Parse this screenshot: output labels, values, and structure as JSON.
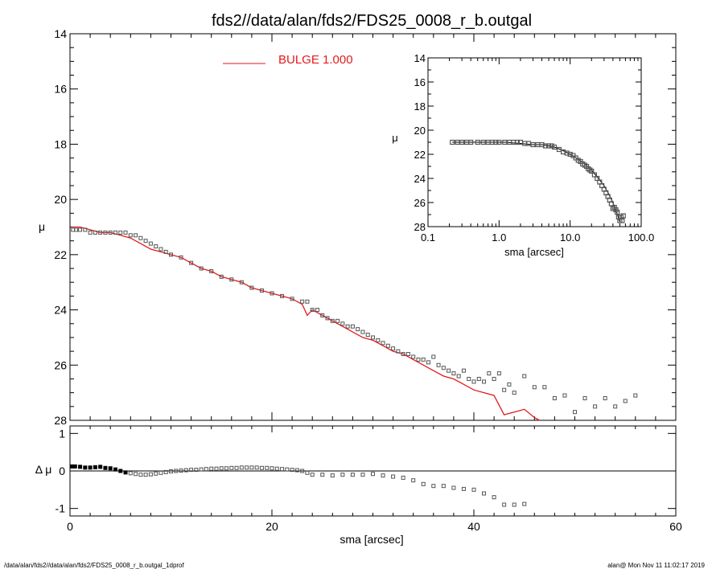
{
  "header": {
    "title": "fds2//data/alan/fds2/FDS25_0008_r_b.outgal"
  },
  "footer": {
    "left": "/data/alan/fds2//data/alan/fds2/FDS25_0008_r_b.outgal_1dprof",
    "right": "alan@  Mon Nov 11 11:02:17 2019"
  },
  "colors": {
    "model": "#e31a1c",
    "data": "#555555",
    "axes": "#000000"
  },
  "chart_data": [
    {
      "type": "scatter",
      "title": "",
      "xlabel": "",
      "ylabel": "μ",
      "xlim": [
        0,
        60
      ],
      "ylim": [
        28,
        14
      ],
      "y_inverted": true,
      "xticks": [
        0,
        20,
        40,
        60
      ],
      "yticks": [
        "14",
        "16",
        "18",
        "20",
        "22",
        "24",
        "26",
        "28"
      ],
      "legend": {
        "position": "top-center",
        "entries": [
          {
            "label": "BULGE  1.000",
            "color": "#e31a1c"
          }
        ]
      },
      "series": [
        {
          "name": "BULGE  1.000",
          "kind": "line",
          "x": [
            0.2,
            1,
            2,
            3,
            4,
            5,
            6,
            7,
            8,
            9,
            10,
            11,
            12,
            13,
            14,
            15,
            16,
            17,
            18,
            19,
            20,
            21,
            22,
            23,
            23.5,
            24,
            25,
            26,
            27,
            28,
            29,
            30,
            31,
            32,
            33,
            34,
            35,
            36,
            37,
            38,
            39,
            40,
            41,
            42,
            43,
            44,
            45,
            46,
            46.5
          ],
          "y": [
            21.0,
            21.0,
            21.1,
            21.2,
            21.2,
            21.3,
            21.4,
            21.6,
            21.8,
            21.9,
            22.0,
            22.1,
            22.3,
            22.5,
            22.6,
            22.8,
            22.9,
            23.0,
            23.2,
            23.3,
            23.4,
            23.5,
            23.6,
            23.8,
            24.2,
            24.0,
            24.2,
            24.4,
            24.6,
            24.8,
            25.0,
            25.1,
            25.3,
            25.5,
            25.6,
            25.8,
            26.0,
            26.2,
            26.4,
            26.5,
            26.7,
            26.9,
            27.0,
            27.1,
            27.8,
            27.7,
            27.6,
            27.9,
            28.0
          ]
        },
        {
          "name": "",
          "kind": "points",
          "x": [
            0.3,
            0.6,
            1,
            1.5,
            2,
            2.5,
            3,
            3.5,
            4,
            4.5,
            5,
            5.5,
            6,
            6.5,
            7,
            7.5,
            8,
            8.5,
            9,
            9.5,
            10,
            11,
            12,
            13,
            14,
            15,
            16,
            17,
            18,
            19,
            20,
            21,
            22,
            23,
            23.5,
            24,
            24.5,
            25,
            25.5,
            26,
            26.5,
            27,
            27.5,
            28,
            28.5,
            29,
            29.5,
            30,
            30.5,
            31,
            31.5,
            32,
            32.5,
            33,
            33.5,
            34,
            34.5,
            35,
            35.5,
            36,
            36.5,
            37,
            37.5,
            38,
            38.5,
            39,
            39.5,
            40,
            40.5,
            41,
            41.5,
            42,
            42.5,
            43,
            43.5,
            44,
            45,
            46,
            47,
            48,
            49,
            50,
            51,
            52,
            53,
            54,
            55,
            56
          ],
          "y": [
            21.1,
            21.1,
            21.1,
            21.1,
            21.2,
            21.2,
            21.2,
            21.2,
            21.2,
            21.2,
            21.2,
            21.2,
            21.3,
            21.3,
            21.4,
            21.5,
            21.6,
            21.7,
            21.8,
            21.9,
            22.0,
            22.1,
            22.3,
            22.5,
            22.6,
            22.8,
            22.9,
            23.0,
            23.2,
            23.3,
            23.4,
            23.5,
            23.6,
            23.7,
            23.7,
            24.0,
            24.0,
            24.2,
            24.3,
            24.4,
            24.4,
            24.5,
            24.6,
            24.6,
            24.7,
            24.8,
            24.9,
            25.0,
            25.1,
            25.2,
            25.3,
            25.4,
            25.5,
            25.6,
            25.6,
            25.7,
            25.8,
            25.8,
            25.9,
            25.7,
            26.0,
            26.1,
            26.2,
            26.3,
            26.4,
            26.2,
            26.5,
            26.6,
            26.5,
            26.6,
            26.3,
            26.5,
            26.3,
            26.9,
            26.7,
            27.0,
            26.4,
            26.8,
            26.8,
            27.2,
            27.1,
            27.7,
            27.2,
            27.5,
            27.2,
            27.5,
            27.3,
            27.1
          ]
        }
      ]
    },
    {
      "type": "scatter",
      "title": "",
      "xlabel": "sma [arcsec]",
      "ylabel": "Δ μ",
      "xlim": [
        0,
        60
      ],
      "ylim": [
        -1.2,
        1.2
      ],
      "xticks": [
        0,
        20,
        40,
        60
      ],
      "yticks": [
        "1",
        "0",
        "-1"
      ],
      "reference_line": 0,
      "series": [
        {
          "name": "",
          "kind": "points",
          "x": [
            0.2,
            0.5,
            1,
            1.5,
            2,
            2.5,
            3,
            3.5,
            4,
            4.5,
            5,
            5.5,
            6,
            6.5,
            7,
            7.5,
            8,
            8.5,
            9,
            9.5,
            10,
            10.5,
            11,
            11.5,
            12,
            12.5,
            13,
            13.5,
            14,
            14.5,
            15,
            15.5,
            16,
            16.5,
            17,
            17.5,
            18,
            18.5,
            19,
            19.5,
            20,
            20.5,
            21,
            21.5,
            22,
            22.5,
            23,
            23.5,
            24,
            25,
            26,
            27,
            28,
            29,
            30,
            31,
            32,
            33,
            34,
            35,
            36,
            37,
            38,
            39,
            40,
            41,
            42,
            43,
            44,
            45
          ],
          "y": [
            0.12,
            0.12,
            0.11,
            0.09,
            0.09,
            0.1,
            0.11,
            0.08,
            0.07,
            0.04,
            0.0,
            -0.04,
            -0.06,
            -0.08,
            -0.1,
            -0.1,
            -0.09,
            -0.07,
            -0.05,
            -0.03,
            -0.01,
            0.0,
            0.01,
            0.02,
            0.03,
            0.03,
            0.04,
            0.05,
            0.06,
            0.06,
            0.07,
            0.07,
            0.08,
            0.08,
            0.09,
            0.09,
            0.09,
            0.09,
            0.08,
            0.08,
            0.07,
            0.06,
            0.05,
            0.04,
            0.03,
            0.02,
            0.0,
            -0.05,
            -0.1,
            -0.1,
            -0.12,
            -0.1,
            -0.1,
            -0.1,
            -0.08,
            -0.12,
            -0.15,
            -0.18,
            -0.25,
            -0.35,
            -0.4,
            -0.4,
            -0.45,
            -0.48,
            -0.5,
            -0.6,
            -0.7,
            -0.9,
            -0.9,
            -0.88
          ]
        }
      ]
    },
    {
      "type": "scatter",
      "title": "",
      "xlabel": "sma [arcsec]",
      "ylabel": "μ",
      "xscale": "log",
      "xlim": [
        0.1,
        100
      ],
      "ylim": [
        28,
        14
      ],
      "y_inverted": true,
      "xticks": [
        "0.1",
        "1.0",
        "10.0",
        "100.0"
      ],
      "yticks": [
        "14",
        "16",
        "18",
        "20",
        "22",
        "24",
        "26",
        "28"
      ],
      "series": [
        {
          "name": "",
          "kind": "line",
          "x": [
            0.22,
            0.3,
            0.5,
            0.8,
            1.2,
            2,
            3,
            4,
            5,
            6,
            8,
            10,
            13,
            16,
            20,
            25,
            30,
            35,
            40,
            45,
            50
          ],
          "y": [
            21.0,
            21.0,
            21.0,
            21.0,
            21.0,
            21.1,
            21.2,
            21.2,
            21.3,
            21.4,
            21.7,
            22.0,
            22.4,
            22.8,
            23.3,
            24.0,
            24.6,
            25.3,
            26.0,
            26.8,
            27.6
          ]
        },
        {
          "name": "",
          "kind": "points",
          "x": [
            0.22,
            0.26,
            0.3,
            0.35,
            0.4,
            0.5,
            0.6,
            0.7,
            0.8,
            0.9,
            1.0,
            1.2,
            1.4,
            1.6,
            1.8,
            2.0,
            2.3,
            2.6,
            3.0,
            3.5,
            4.0,
            4.5,
            5.0,
            5.5,
            6.0,
            7.0,
            8.0,
            9.0,
            10,
            11,
            12,
            13,
            14,
            15,
            16,
            17,
            18,
            19,
            20,
            22,
            24,
            26,
            28,
            30,
            32,
            34,
            36,
            38,
            40,
            42,
            44,
            46,
            48,
            50,
            52,
            54,
            56
          ],
          "y": [
            21.0,
            21.0,
            21.0,
            21.0,
            21.0,
            21.0,
            21.0,
            21.0,
            21.0,
            21.0,
            21.0,
            21.0,
            21.0,
            21.0,
            21.0,
            21.0,
            21.1,
            21.1,
            21.2,
            21.2,
            21.2,
            21.3,
            21.3,
            21.3,
            21.4,
            21.6,
            21.8,
            21.9,
            22.0,
            22.1,
            22.3,
            22.5,
            22.6,
            22.8,
            22.9,
            23.0,
            23.2,
            23.3,
            23.4,
            23.7,
            24.0,
            24.3,
            24.6,
            24.9,
            25.2,
            25.5,
            25.8,
            26.1,
            26.5,
            26.4,
            26.6,
            26.8,
            27.2,
            27.5,
            27.2,
            27.5,
            27.1
          ]
        }
      ]
    }
  ]
}
